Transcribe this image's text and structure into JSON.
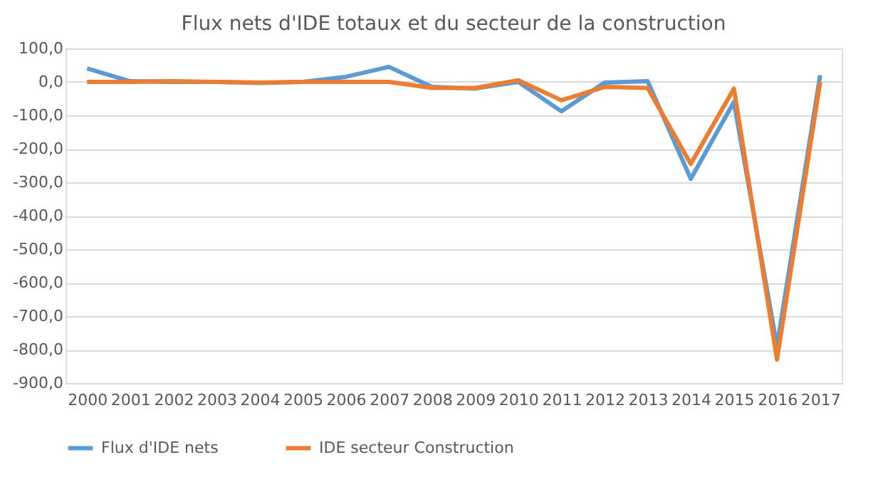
{
  "chart_data": {
    "type": "line",
    "title": "Flux nets d'IDE totaux et du secteur de la construction",
    "categories": [
      "2000",
      "2001",
      "2002",
      "2003",
      "2004",
      "2005",
      "2006",
      "2007",
      "2008",
      "2009",
      "2010",
      "2011",
      "2012",
      "2013",
      "2014",
      "2015",
      "2016",
      "2017"
    ],
    "series": [
      {
        "name": "Flux d'IDE nets",
        "color": "#5b9bd5",
        "values": [
          40,
          2,
          0,
          0,
          -3,
          0,
          15,
          45,
          -15,
          -20,
          0,
          -88,
          -2,
          2,
          -290,
          -60,
          -790,
          20
        ]
      },
      {
        "name": "IDE secteur Construction",
        "color": "#ed7d31",
        "values": [
          0,
          0,
          2,
          0,
          -2,
          0,
          0,
          0,
          -18,
          -18,
          5,
          -55,
          -15,
          -18,
          -245,
          -20,
          -830,
          0
        ]
      }
    ],
    "ylim": [
      -900,
      100
    ],
    "yticks": [
      {
        "value": 100,
        "label": "100,0"
      },
      {
        "value": 0,
        "label": "0,0"
      },
      {
        "value": -100,
        "label": "-100,0"
      },
      {
        "value": -200,
        "label": "-200,0"
      },
      {
        "value": -300,
        "label": "-300,0"
      },
      {
        "value": -400,
        "label": "-400,0"
      },
      {
        "value": -500,
        "label": "-500,0"
      },
      {
        "value": -600,
        "label": "-600,0"
      },
      {
        "value": -700,
        "label": "-700,0"
      },
      {
        "value": -800,
        "label": "-800,0"
      },
      {
        "value": -900,
        "label": "-900,0"
      }
    ],
    "grid": "y",
    "legend": "bottom",
    "marker": "none",
    "line_style": "solid"
  }
}
